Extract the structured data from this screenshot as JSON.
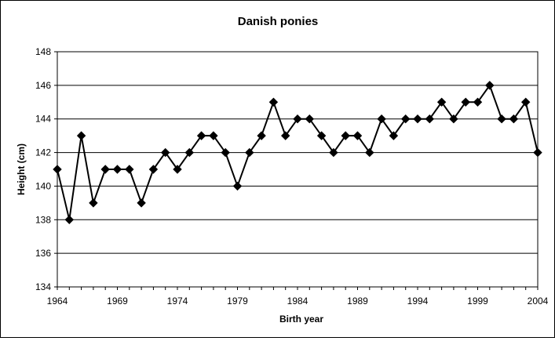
{
  "chart_data": {
    "type": "line",
    "title": "Danish ponies",
    "xlabel": "Birth year",
    "ylabel": "Height (cm)",
    "xlim": [
      1964,
      2004
    ],
    "ylim": [
      134,
      148
    ],
    "grid": "horizontal",
    "x_ticks": [
      "1964",
      "1969",
      "1974",
      "1979",
      "1984",
      "1989",
      "1994",
      "1999",
      "2004"
    ],
    "y_ticks": [
      "134",
      "136",
      "138",
      "140",
      "142",
      "144",
      "146",
      "148"
    ],
    "series": [
      {
        "marker": "diamond",
        "color": "#000000",
        "x": [
          1964,
          1965,
          1966,
          1967,
          1968,
          1969,
          1970,
          1971,
          1972,
          1973,
          1974,
          1975,
          1976,
          1977,
          1978,
          1979,
          1980,
          1981,
          1982,
          1983,
          1984,
          1985,
          1986,
          1987,
          1988,
          1989,
          1990,
          1991,
          1992,
          1993,
          1994,
          1995,
          1996,
          1997,
          1998,
          1999,
          2000,
          2001,
          2002,
          2003,
          2004
        ],
        "y": [
          141,
          138,
          143,
          139,
          141,
          141,
          141,
          139,
          141,
          142,
          141,
          142,
          143,
          143,
          142,
          140,
          142,
          143,
          145,
          143,
          144,
          144,
          143,
          142,
          143,
          143,
          142,
          144,
          143,
          144,
          144,
          144,
          145,
          144,
          145,
          145,
          146,
          144,
          144,
          145,
          142
        ]
      }
    ]
  }
}
